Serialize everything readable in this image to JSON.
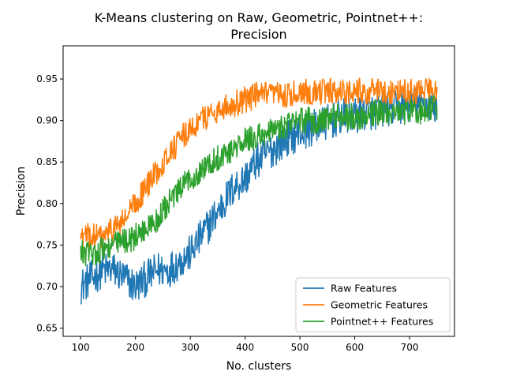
{
  "chart_data": {
    "type": "line",
    "title": "K-Means clustering on Raw, Geometric, Pointnet++:",
    "subtitle": "Precision",
    "xlabel": "No. clusters",
    "ylabel": "Precision",
    "xlim": [
      68,
      782
    ],
    "ylim": [
      0.64,
      0.99
    ],
    "xticks": [
      100,
      200,
      300,
      400,
      500,
      600,
      700
    ],
    "yticks": [
      0.65,
      0.7,
      0.75,
      0.8,
      0.85,
      0.9,
      0.95
    ],
    "grid": false,
    "legend_position": "lower-right",
    "series": [
      {
        "name": "Raw Features",
        "color": "#1f77b4",
        "x": [
          100,
          120,
          140,
          160,
          180,
          200,
          220,
          240,
          260,
          280,
          300,
          320,
          340,
          360,
          380,
          400,
          420,
          440,
          460,
          480,
          500,
          520,
          540,
          560,
          580,
          600,
          620,
          640,
          660,
          680,
          700,
          720,
          740,
          750
        ],
        "values": [
          0.7,
          0.71,
          0.72,
          0.72,
          0.71,
          0.7,
          0.71,
          0.72,
          0.72,
          0.73,
          0.74,
          0.76,
          0.78,
          0.8,
          0.82,
          0.83,
          0.85,
          0.86,
          0.87,
          0.88,
          0.885,
          0.89,
          0.895,
          0.9,
          0.905,
          0.905,
          0.91,
          0.91,
          0.915,
          0.915,
          0.92,
          0.92,
          0.92,
          0.915
        ],
        "noise": 0.022
      },
      {
        "name": "Geometric Features",
        "color": "#ff7f0e",
        "x": [
          100,
          120,
          140,
          160,
          180,
          200,
          220,
          240,
          260,
          280,
          300,
          320,
          340,
          360,
          380,
          400,
          420,
          440,
          460,
          480,
          500,
          520,
          540,
          560,
          580,
          600,
          620,
          640,
          660,
          680,
          700,
          720,
          740,
          750
        ],
        "values": [
          0.76,
          0.76,
          0.76,
          0.77,
          0.78,
          0.8,
          0.82,
          0.84,
          0.86,
          0.875,
          0.89,
          0.9,
          0.91,
          0.915,
          0.92,
          0.925,
          0.93,
          0.93,
          0.93,
          0.93,
          0.935,
          0.935,
          0.935,
          0.935,
          0.935,
          0.935,
          0.935,
          0.935,
          0.935,
          0.935,
          0.935,
          0.935,
          0.935,
          0.935
        ],
        "noise": 0.016
      },
      {
        "name": "Pointnet++ Features",
        "color": "#2ca02c",
        "x": [
          100,
          120,
          140,
          160,
          180,
          200,
          220,
          240,
          260,
          280,
          300,
          320,
          340,
          360,
          380,
          400,
          420,
          440,
          460,
          480,
          500,
          520,
          540,
          560,
          580,
          600,
          620,
          640,
          660,
          680,
          700,
          720,
          740,
          750
        ],
        "values": [
          0.74,
          0.74,
          0.745,
          0.75,
          0.755,
          0.76,
          0.77,
          0.78,
          0.8,
          0.815,
          0.83,
          0.84,
          0.85,
          0.86,
          0.865,
          0.875,
          0.88,
          0.885,
          0.89,
          0.895,
          0.9,
          0.9,
          0.9,
          0.905,
          0.905,
          0.905,
          0.905,
          0.91,
          0.91,
          0.91,
          0.91,
          0.91,
          0.915,
          0.915
        ],
        "noise": 0.016
      }
    ]
  }
}
